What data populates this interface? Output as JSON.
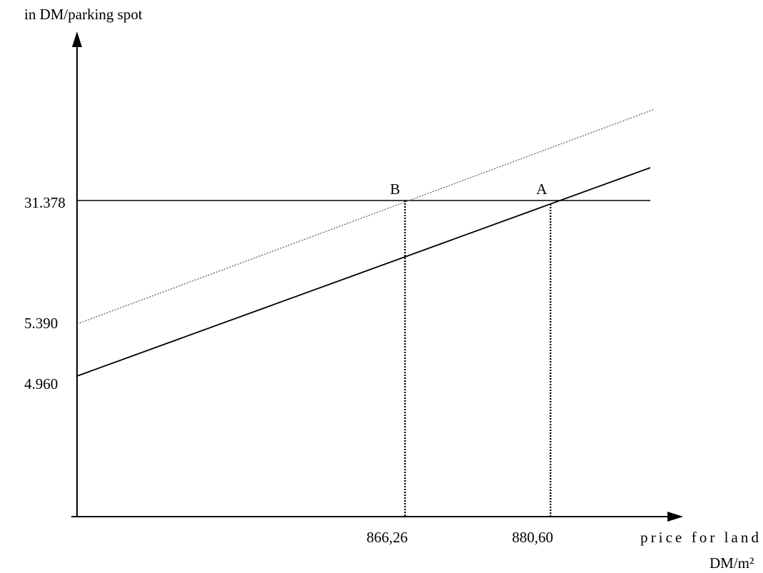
{
  "chart_data": {
    "type": "line",
    "ylabel": "in DM/parking spot",
    "xlabel_line1": "price for land",
    "xlabel_line2": "DM/m²",
    "y_tick_labels": [
      "31.378",
      "5.390",
      "4.960"
    ],
    "x_tick_labels": [
      "866,26",
      "880,60"
    ],
    "point_labels": [
      "B",
      "A"
    ],
    "series": [
      {
        "style": "solid",
        "color": "#000000"
      },
      {
        "style": "dotted",
        "color": "#555555"
      },
      {
        "style": "solid-horizontal",
        "color": "#000000"
      }
    ],
    "grid": false
  }
}
